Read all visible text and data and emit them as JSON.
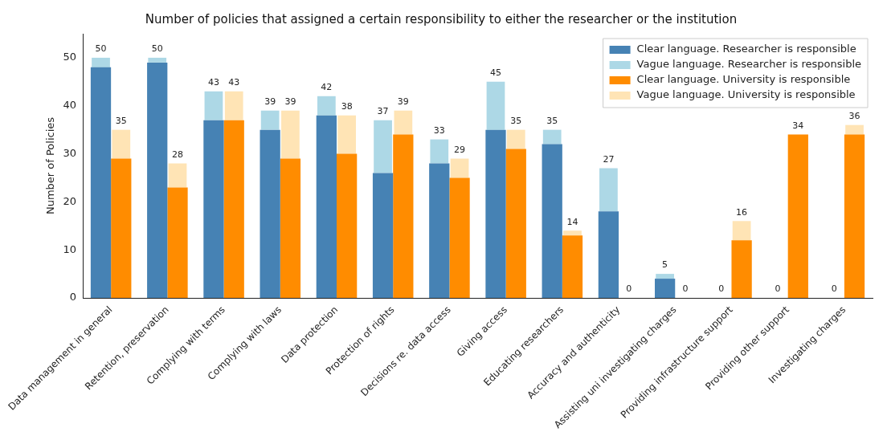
{
  "chart_data": {
    "type": "bar",
    "title": "Number of policies that assigned a certain responsibility to either the researcher or the institution",
    "ylabel": "Number of Policies",
    "categories": [
      "Data management in general",
      "Retention, preservation",
      "Complying with terms",
      "Complying with laws",
      "Data protection",
      "Protection of rights",
      "Decisions re. data access",
      "Giving access",
      "Educating researchers",
      "Accuracy and authenticity",
      "Assisting uni investigating charges",
      "Providing infrastructure support",
      "Providing other support",
      "Investigating charges"
    ],
    "series": [
      {
        "name": "Clear language. Researcher is responsible",
        "color": "#4682b4",
        "values": [
          48,
          49,
          37,
          35,
          38,
          26,
          28,
          35,
          32,
          18,
          4,
          0,
          0,
          0
        ]
      },
      {
        "name": "Vague language. Researcher is responsible",
        "color": "#add8e6",
        "values": [
          2,
          1,
          6,
          4,
          4,
          11,
          5,
          10,
          3,
          9,
          1,
          0,
          0,
          0
        ],
        "base": [
          48,
          49,
          37,
          35,
          38,
          26,
          28,
          35,
          32,
          18,
          4,
          null,
          null,
          null
        ]
      },
      {
        "name": "Clear language. University is responsible",
        "color": "#ff8c00",
        "values": [
          29,
          23,
          37,
          29,
          30,
          34,
          25,
          31,
          13,
          0,
          0,
          12,
          34,
          34
        ]
      },
      {
        "name": "Vague language. University is responsible",
        "color": "#ffe4b5",
        "values": [
          6,
          5,
          6,
          10,
          8,
          5,
          4,
          4,
          1,
          0,
          0,
          4,
          0,
          2
        ],
        "base": [
          29,
          23,
          37,
          29,
          30,
          34,
          25,
          31,
          13,
          null,
          null,
          12,
          null,
          34
        ]
      }
    ],
    "totals": [
      [
        "50",
        "50",
        "43",
        "39",
        "42",
        "37",
        "33",
        "45",
        "35",
        "27",
        "5",
        "0",
        "0",
        "0"
      ],
      [
        "35",
        "28",
        "43",
        "39",
        "38",
        "39",
        "29",
        "35",
        "14",
        "0",
        "0",
        "16",
        "34",
        "36"
      ]
    ],
    "ylim": [
      0,
      55
    ],
    "yticks": [
      0,
      10,
      20,
      30,
      40,
      50
    ],
    "grid": false,
    "legend": "top right"
  }
}
